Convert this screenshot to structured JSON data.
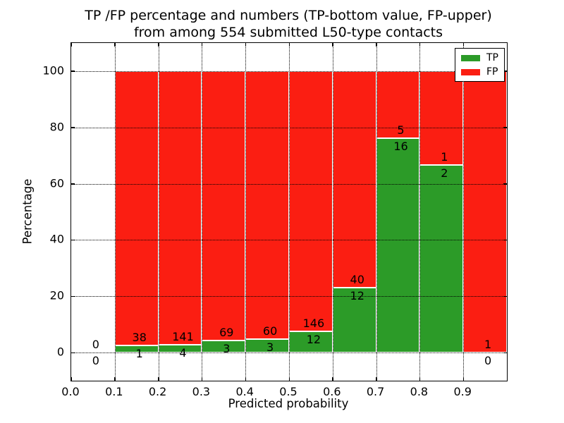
{
  "title": {
    "line1": "TP /FP percentage and numbers (TP-bottom value, FP-upper)",
    "line2": "from among 554 submitted L50-type contacts"
  },
  "axes": {
    "xlabel": "Predicted probability",
    "ylabel": "Percentage",
    "xticks": [
      0.0,
      0.1,
      0.2,
      0.3,
      0.4,
      0.5,
      0.6,
      0.7,
      0.8,
      0.9
    ],
    "xtick_labels": [
      "0.0",
      "0.1",
      "0.2",
      "0.3",
      "0.4",
      "0.5",
      "0.6",
      "0.7",
      "0.8",
      "0.9"
    ],
    "yticks": [
      0,
      20,
      40,
      60,
      80,
      100
    ],
    "ytick_labels": [
      "0",
      "20",
      "40",
      "60",
      "80",
      "100"
    ]
  },
  "chart_data": {
    "type": "bar",
    "stacked": true,
    "normalized_to_percent": true,
    "title": "TP /FP percentage and numbers (TP-bottom value, FP-upper) from among 554 submitted L50-type contacts",
    "xlabel": "Predicted probability",
    "ylabel": "Percentage",
    "xlim": [
      0.0,
      1.0
    ],
    "ylim": [
      -10,
      110
    ],
    "grid": "dotted, both axes",
    "legend_position": "upper right",
    "total_contacts": 554,
    "bin_edges": [
      0.0,
      0.1,
      0.2,
      0.3,
      0.4,
      0.5,
      0.6,
      0.7,
      0.8,
      0.9,
      1.0
    ],
    "categories": [
      "0.0-0.1",
      "0.1-0.2",
      "0.2-0.3",
      "0.3-0.4",
      "0.4-0.5",
      "0.5-0.6",
      "0.6-0.7",
      "0.7-0.8",
      "0.8-0.9",
      "0.9-1.0"
    ],
    "series": [
      {
        "name": "TP",
        "color": "#2c9b28",
        "counts": [
          0,
          1,
          4,
          3,
          3,
          12,
          12,
          16,
          2,
          0
        ]
      },
      {
        "name": "FP",
        "color": "#fb1e12",
        "counts": [
          0,
          38,
          141,
          69,
          60,
          146,
          40,
          5,
          1,
          1
        ]
      }
    ],
    "tp_percent_of_bin": [
      null,
      2.6,
      2.8,
      4.2,
      4.8,
      7.6,
      23.1,
      76.2,
      66.7,
      0.0
    ]
  }
}
